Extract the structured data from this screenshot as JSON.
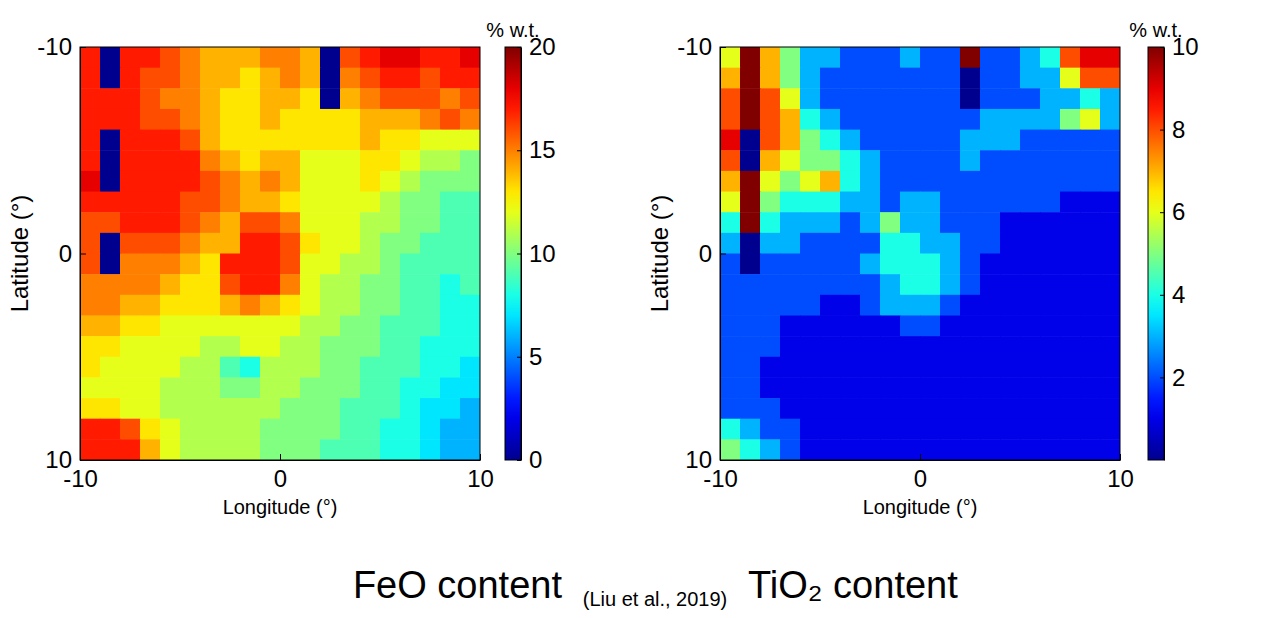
{
  "chart_data": [
    {
      "type": "heatmap",
      "title": "FeO content",
      "xlabel": "Longitude (°)",
      "ylabel": "Latitude (°)",
      "xlim": [
        -10,
        10
      ],
      "xticks": [
        -10,
        0,
        10
      ],
      "ylim": [
        -10,
        10
      ],
      "yticks": [
        -10,
        0,
        10
      ],
      "x": [
        -9.5,
        -8.5,
        -7.5,
        -6.5,
        -5.5,
        -4.5,
        -3.5,
        -2.5,
        -1.5,
        -0.5,
        0.5,
        1.5,
        2.5,
        3.5,
        4.5,
        5.5,
        6.5,
        7.5,
        8.5,
        9.5
      ],
      "y": [
        -9.5,
        -8.5,
        -7.5,
        -6.5,
        -5.5,
        -4.5,
        -3.5,
        -2.5,
        -1.5,
        -0.5,
        0.5,
        1.5,
        2.5,
        3.5,
        4.5,
        5.5,
        6.5,
        7.5,
        8.5,
        9.5
      ],
      "z": [
        [
          17,
          0,
          17,
          17,
          16,
          15,
          14,
          14,
          14,
          15,
          15,
          14,
          0,
          16,
          17,
          18,
          18,
          17,
          17,
          18
        ],
        [
          17,
          0,
          17,
          16,
          16,
          15,
          14,
          14,
          13,
          14,
          15,
          14,
          0,
          15,
          16,
          17,
          17,
          16,
          17,
          17
        ],
        [
          17,
          17,
          17,
          16,
          15,
          15,
          14,
          13,
          13,
          14,
          14,
          13,
          0,
          14,
          15,
          16,
          16,
          16,
          15,
          16
        ],
        [
          17,
          17,
          17,
          16,
          16,
          15,
          14,
          13,
          13,
          14,
          13,
          13,
          13,
          13,
          14,
          14,
          14,
          15,
          16,
          15
        ],
        [
          17,
          0,
          17,
          17,
          17,
          16,
          14,
          13,
          13,
          13,
          13,
          13,
          13,
          13,
          14,
          13,
          13,
          12,
          12,
          12
        ],
        [
          17,
          0,
          17,
          17,
          17,
          17,
          15,
          14,
          13,
          14,
          14,
          12,
          12,
          12,
          13,
          13,
          12,
          11,
          11,
          10
        ],
        [
          18,
          0,
          17,
          17,
          17,
          17,
          16,
          15,
          14,
          15,
          14,
          12,
          12,
          12,
          13,
          12,
          11,
          10,
          10,
          10
        ],
        [
          17,
          17,
          17,
          17,
          17,
          16,
          16,
          15,
          14,
          14,
          13,
          12,
          12,
          12,
          12,
          11,
          10,
          10,
          9,
          9
        ],
        [
          16,
          16,
          17,
          17,
          17,
          16,
          15,
          14,
          16,
          16,
          15,
          12,
          12,
          12,
          11,
          11,
          10,
          10,
          9,
          9
        ],
        [
          16,
          0,
          16,
          16,
          16,
          15,
          14,
          14,
          17,
          17,
          16,
          13,
          12,
          12,
          11,
          10,
          10,
          9,
          9,
          9
        ],
        [
          16,
          0,
          15,
          15,
          15,
          14,
          13,
          17,
          17,
          17,
          16,
          12,
          12,
          11,
          11,
          10,
          9,
          9,
          9,
          9
        ],
        [
          15,
          15,
          15,
          15,
          14,
          13,
          13,
          16,
          17,
          17,
          15,
          12,
          11,
          11,
          10,
          10,
          9,
          9,
          8,
          9
        ],
        [
          15,
          15,
          14,
          14,
          13,
          13,
          13,
          14,
          15,
          14,
          13,
          12,
          11,
          11,
          10,
          10,
          9,
          9,
          8,
          8
        ],
        [
          14,
          14,
          13,
          13,
          12,
          12,
          12,
          12,
          12,
          12,
          12,
          11,
          11,
          10,
          10,
          9,
          9,
          9,
          8,
          8
        ],
        [
          13,
          13,
          12,
          12,
          12,
          12,
          11,
          11,
          12,
          12,
          11,
          11,
          10,
          10,
          10,
          9,
          9,
          8,
          8,
          8
        ],
        [
          13,
          12,
          12,
          12,
          12,
          11,
          11,
          9,
          8,
          11,
          11,
          11,
          10,
          10,
          9,
          9,
          9,
          8,
          8,
          7
        ],
        [
          12,
          12,
          12,
          12,
          11,
          11,
          11,
          10,
          10,
          11,
          11,
          10,
          10,
          10,
          9,
          9,
          8,
          8,
          7,
          7
        ],
        [
          13,
          13,
          12,
          12,
          11,
          11,
          11,
          11,
          11,
          11,
          10,
          10,
          10,
          9,
          9,
          9,
          8,
          7,
          7,
          6
        ],
        [
          17,
          17,
          16,
          13,
          12,
          11,
          11,
          11,
          11,
          10,
          10,
          10,
          10,
          9,
          9,
          8,
          8,
          7,
          6,
          6
        ],
        [
          17,
          17,
          17,
          14,
          12,
          11,
          11,
          11,
          11,
          10,
          10,
          10,
          9,
          9,
          9,
          8,
          8,
          7,
          6,
          6
        ]
      ],
      "colorbar": {
        "label": "% w.t.",
        "range": [
          0,
          20
        ],
        "ticks": [
          0,
          5,
          10,
          15,
          20
        ]
      }
    },
    {
      "type": "heatmap",
      "title": "TiO₂ content",
      "xlabel": "Longitude (°)",
      "ylabel": "Latitude (°)",
      "xlim": [
        -10,
        10
      ],
      "xticks": [
        -10,
        0,
        10
      ],
      "ylim": [
        -10,
        10
      ],
      "yticks": [
        -10,
        0,
        10
      ],
      "x": [
        -9.5,
        -8.5,
        -7.5,
        -6.5,
        -5.5,
        -4.5,
        -3.5,
        -2.5,
        -1.5,
        -0.5,
        0.5,
        1.5,
        2.5,
        3.5,
        4.5,
        5.5,
        6.5,
        7.5,
        8.5,
        9.5
      ],
      "y": [
        -9.5,
        -8.5,
        -7.5,
        -6.5,
        -5.5,
        -4.5,
        -3.5,
        -2.5,
        -1.5,
        -0.5,
        0.5,
        1.5,
        2.5,
        3.5,
        4.5,
        5.5,
        6.5,
        7.5,
        8.5,
        9.5
      ],
      "z": [
        [
          6,
          10,
          7,
          5,
          3,
          3,
          2,
          2,
          2,
          3,
          2,
          2,
          10,
          2,
          2,
          3,
          4,
          8,
          9,
          9
        ],
        [
          7,
          10,
          7,
          5,
          3,
          2,
          2,
          2,
          2,
          2,
          2,
          2,
          0,
          2,
          2,
          3,
          3,
          6,
          8,
          8
        ],
        [
          8,
          10,
          8,
          6,
          3,
          2,
          2,
          2,
          2,
          2,
          2,
          2,
          0,
          2,
          2,
          2,
          3,
          3,
          4,
          3
        ],
        [
          8,
          10,
          8,
          7,
          4,
          3,
          2,
          2,
          2,
          2,
          2,
          2,
          2,
          3,
          3,
          3,
          3,
          5,
          6,
          3
        ],
        [
          9,
          0,
          8,
          7,
          5,
          4,
          3,
          2,
          2,
          2,
          2,
          2,
          3,
          3,
          3,
          2,
          2,
          2,
          2,
          2
        ],
        [
          8,
          0,
          7,
          6,
          5,
          5,
          4,
          3,
          2,
          2,
          2,
          2,
          3,
          2,
          2,
          2,
          2,
          2,
          2,
          2
        ],
        [
          7,
          10,
          6,
          5,
          6,
          7,
          4,
          3,
          2,
          2,
          2,
          2,
          2,
          2,
          2,
          2,
          2,
          2,
          2,
          2
        ],
        [
          6,
          10,
          5,
          4,
          4,
          4,
          3,
          3,
          2,
          3,
          3,
          2,
          2,
          2,
          2,
          2,
          2,
          1,
          1,
          1
        ],
        [
          4,
          10,
          4,
          3,
          3,
          3,
          2,
          3,
          5,
          3,
          3,
          2,
          2,
          2,
          1,
          1,
          1,
          1,
          1,
          1
        ],
        [
          3,
          0,
          3,
          3,
          2,
          2,
          2,
          2,
          4,
          4,
          3,
          3,
          2,
          2,
          1,
          1,
          1,
          1,
          1,
          1
        ],
        [
          2,
          0,
          2,
          2,
          2,
          2,
          2,
          3,
          4,
          4,
          4,
          3,
          2,
          1,
          1,
          1,
          1,
          1,
          1,
          1
        ],
        [
          2,
          2,
          2,
          2,
          2,
          2,
          2,
          2,
          3,
          4,
          4,
          3,
          2,
          1,
          1,
          1,
          1,
          1,
          1,
          1
        ],
        [
          2,
          2,
          2,
          2,
          2,
          1,
          1,
          2,
          3,
          3,
          3,
          2,
          1,
          1,
          1,
          1,
          1,
          1,
          1,
          1
        ],
        [
          2,
          2,
          2,
          1,
          1,
          1,
          1,
          1,
          1,
          2,
          2,
          1,
          1,
          1,
          1,
          1,
          1,
          1,
          1,
          1
        ],
        [
          2,
          2,
          2,
          1,
          1,
          1,
          1,
          1,
          1,
          1,
          1,
          1,
          1,
          1,
          1,
          1,
          1,
          1,
          1,
          1
        ],
        [
          2,
          2,
          1,
          1,
          1,
          1,
          1,
          1,
          1,
          1,
          1,
          1,
          1,
          1,
          1,
          1,
          1,
          1,
          1,
          1
        ],
        [
          2,
          2,
          1,
          1,
          1,
          1,
          1,
          1,
          1,
          1,
          1,
          1,
          1,
          1,
          1,
          1,
          1,
          1,
          1,
          1
        ],
        [
          2,
          2,
          2,
          1,
          1,
          1,
          1,
          1,
          1,
          1,
          1,
          1,
          1,
          1,
          1,
          1,
          1,
          1,
          1,
          1
        ],
        [
          4,
          3,
          2,
          2,
          1,
          1,
          1,
          1,
          1,
          1,
          1,
          1,
          1,
          1,
          1,
          1,
          1,
          1,
          1,
          1
        ],
        [
          5,
          4,
          3,
          2,
          1,
          1,
          1,
          1,
          1,
          1,
          1,
          1,
          1,
          1,
          1,
          1,
          1,
          1,
          1,
          1
        ]
      ],
      "colorbar": {
        "label": "% w.t.",
        "range": [
          0,
          10
        ],
        "ticks": [
          2,
          4,
          6,
          8,
          10
        ]
      }
    }
  ],
  "caption": {
    "source": "(Liu et al., 2019)"
  }
}
